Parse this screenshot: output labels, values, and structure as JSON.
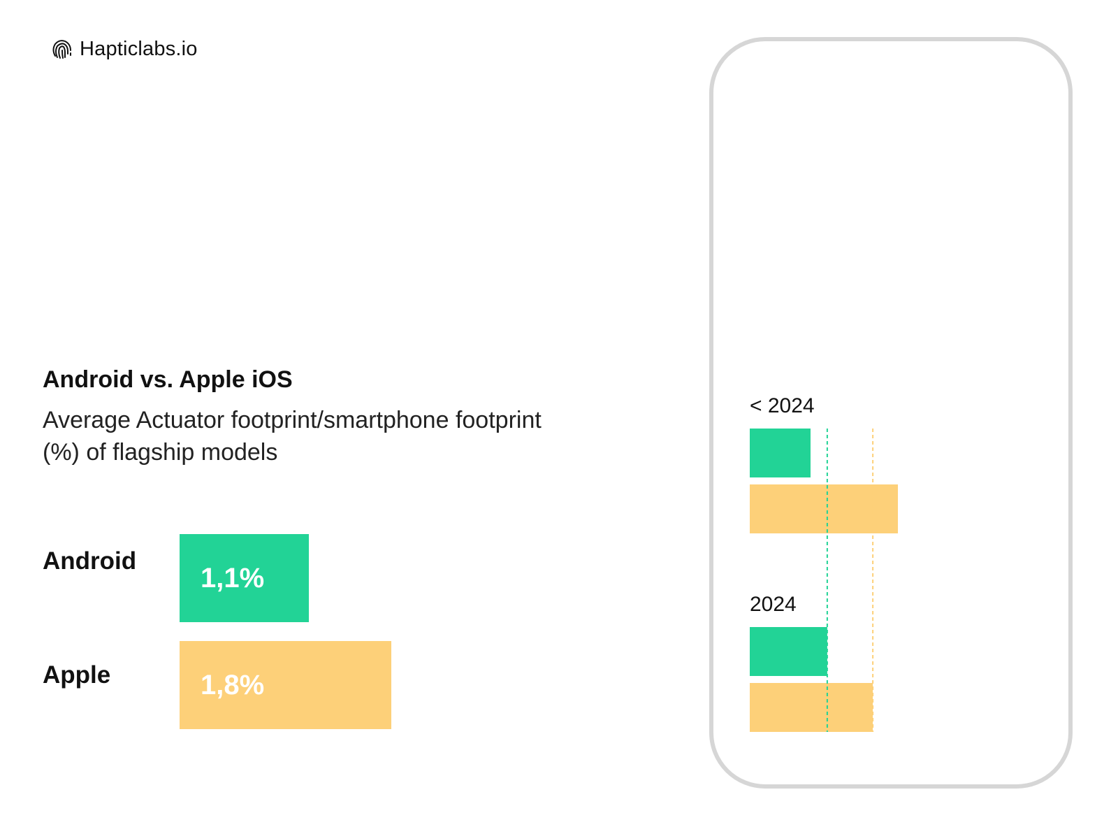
{
  "brand": {
    "name": "Hapticlabs.io",
    "icon": "fingerprint-icon"
  },
  "colors": {
    "android": "#22d396",
    "apple": "#fdd079",
    "phone_outline": "#d6d6d6"
  },
  "chart_data": [
    {
      "type": "bar",
      "orientation": "horizontal",
      "title": "Android vs. Apple iOS",
      "subtitle": "Average Actuator footprint/smartphone footprint (%) of flagship models",
      "categories": [
        "Android",
        "Apple"
      ],
      "values": [
        1.1,
        1.8
      ],
      "value_labels": [
        "1,1%",
        "1,8%"
      ],
      "xlim": [
        0,
        1.8
      ]
    },
    {
      "type": "bar",
      "orientation": "horizontal",
      "groups": [
        {
          "label": "< 2024",
          "values": [
            0.8,
            1.95
          ]
        },
        {
          "label": "2024",
          "values": [
            1.02,
            1.62
          ]
        }
      ],
      "series_colors": [
        "#22d396",
        "#fdd079"
      ],
      "reference_lines": [
        1.02,
        1.62
      ],
      "xlim": [
        0,
        1.95
      ]
    }
  ]
}
